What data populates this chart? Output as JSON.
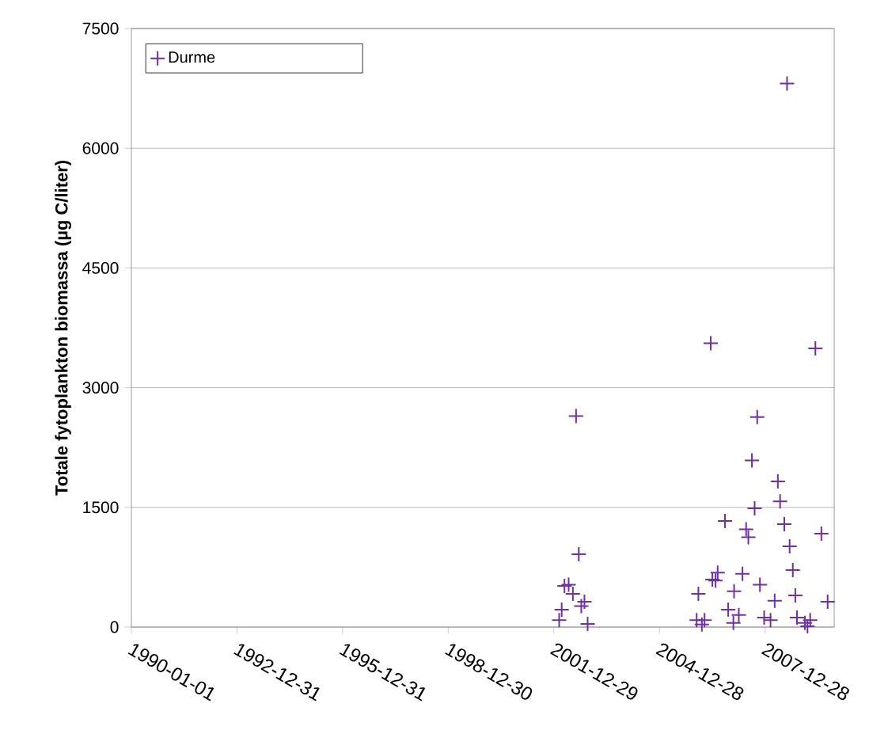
{
  "chart_data": {
    "type": "scatter",
    "ylabel": "Totale fytoplankton biomassa (µg C/liter)",
    "xlim": [
      "1990-01-01",
      "2009-12-13"
    ],
    "xticks": [
      "1990-01-01",
      "1992-12-31",
      "1995-12-31",
      "1998-12-30",
      "2001-12-29",
      "2004-12-28",
      "2007-12-28"
    ],
    "ylim": [
      0,
      7500
    ],
    "yticks": [
      0,
      1500,
      3000,
      4500,
      6000,
      7500
    ],
    "grid": "y",
    "legend": "top left",
    "marker": "cross",
    "series": [
      {
        "name": "Durme",
        "color": "#7030a0",
        "x": [
          "2002-08-16",
          "2002-09-13",
          "2002-05-31",
          "2002-04-18",
          "2002-07-14",
          "2002-11-11",
          "2002-10-09",
          "2002-03-20",
          "2002-02-22",
          "2002-12-14",
          "2007-10-07",
          "2007-08-13",
          "2008-05-08",
          "2008-05-31",
          "2007-09-10",
          "2006-11-07",
          "2008-07-14",
          "2007-06-14",
          "2007-07-07",
          "2009-08-02",
          "2008-09-07",
          "2008-10-10",
          "2007-05-07",
          "2006-08-23",
          "2006-06-29",
          "2006-08-01",
          "2007-11-04",
          "2006-02-04",
          "2007-02-09",
          "2008-11-05",
          "2008-04-05",
          "2009-10-06",
          "2006-12-10",
          "2007-03-30",
          "2006-01-17",
          "2006-04-09",
          "2006-03-12",
          "2007-12-18",
          "2008-02-22",
          "2007-02-02",
          "2008-11-22",
          "2009-02-12",
          "2009-04-08",
          "2009-03-11",
          "2008-08-11",
          "2006-06-12",
          "2009-06-01"
        ],
        "values": [
          2645,
          913,
          530,
          516,
          417,
          317,
          264,
          218,
          86,
          40,
          2632,
          2089,
          1825,
          1574,
          1488,
          1329,
          1290,
          1224,
          1125,
          1171,
          1012,
          714,
          668,
          681,
          595,
          582,
          530,
          417,
          450,
          397,
          331,
          317,
          218,
          152,
          86,
          86,
          33,
          119,
          86,
          53,
          119,
          53,
          86,
          10,
          6810,
          3557,
          3492
        ]
      }
    ]
  }
}
